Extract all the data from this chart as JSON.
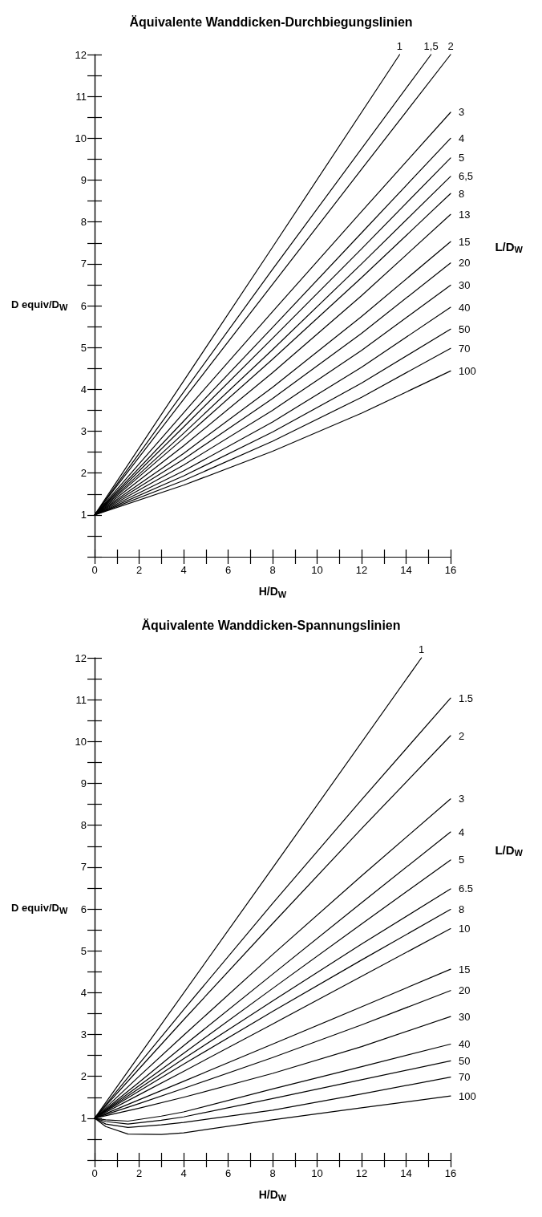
{
  "chart_data": [
    {
      "type": "line",
      "title": "Äquivalente Wanddicken-Durchbiegungslinien",
      "xlabel": "H/D$_{W}$",
      "ylabel": "D equiv/D$_{W}$",
      "legend_title": "L/D$_{W}$",
      "marker": "none",
      "xlim": [
        0,
        16
      ],
      "ylim": [
        0,
        12
      ],
      "xticks": [
        0,
        {
          "value": 1,
          "label": null
        },
        2,
        {
          "value": 3,
          "label": null
        },
        4,
        {
          "value": 5,
          "label": null
        },
        6,
        {
          "value": 7,
          "label": null
        },
        8,
        {
          "value": 9,
          "label": null
        },
        10,
        {
          "value": 11,
          "label": null
        },
        12,
        {
          "value": 13,
          "label": null
        },
        14,
        {
          "value": 15,
          "label": null
        },
        16
      ],
      "yticks": [
        {
          "value": 0,
          "label": null
        },
        {
          "value": 0.5,
          "label": null
        },
        1,
        {
          "value": 1.5,
          "label": null
        },
        2,
        {
          "value": 2.5,
          "label": null
        },
        3,
        {
          "value": 3.5,
          "label": null
        },
        4,
        {
          "value": 4.5,
          "label": null
        },
        5,
        {
          "value": 5.5,
          "label": null
        },
        6,
        {
          "value": 6.5,
          "label": null
        },
        7,
        {
          "value": 7.5,
          "label": null
        },
        8,
        {
          "value": 8.5,
          "label": null
        },
        9,
        {
          "value": 9.5,
          "label": null
        },
        10,
        {
          "value": 10.5,
          "label": null
        },
        11,
        {
          "value": 11.5,
          "label": null
        },
        12
      ],
      "series": [
        {
          "name": "1",
          "color": "#000000",
          "x": [
            0,
            8,
            13.71
          ],
          "values": [
            1,
            7.4,
            12
          ]
        },
        {
          "name": "1,5",
          "color": "#000000",
          "x": [
            0,
            8,
            15.12
          ],
          "values": [
            1,
            6.87,
            12
          ]
        },
        {
          "name": "2",
          "color": "#000000",
          "x": [
            0,
            4,
            8,
            12,
            16
          ],
          "values": [
            1,
            3.76,
            6.51,
            9.26,
            12
          ]
        },
        {
          "name": "3",
          "color": "#000000",
          "x": [
            0,
            4,
            8,
            12,
            16
          ],
          "values": [
            1,
            3.44,
            5.86,
            8.25,
            10.62
          ]
        },
        {
          "name": "4",
          "color": "#000000",
          "x": [
            0,
            4,
            8,
            12,
            16
          ],
          "values": [
            1,
            3.24,
            5.48,
            7.74,
            10.0
          ]
        },
        {
          "name": "5",
          "color": "#000000",
          "x": [
            0,
            4,
            8,
            12,
            16
          ],
          "values": [
            1,
            3.1,
            5.22,
            7.36,
            9.53
          ]
        },
        {
          "name": "6,5",
          "color": "#000000",
          "x": [
            0,
            4,
            8,
            12,
            16
          ],
          "values": [
            1,
            2.95,
            4.95,
            7.0,
            9.09
          ]
        },
        {
          "name": "8",
          "color": "#000000",
          "x": [
            0,
            4,
            8,
            12,
            16
          ],
          "values": [
            1,
            2.83,
            4.72,
            6.67,
            8.68
          ]
        },
        {
          "name": "13",
          "color": "#000000",
          "x": [
            0,
            4,
            8,
            12,
            16
          ],
          "values": [
            1,
            2.65,
            4.4,
            6.24,
            8.18
          ]
        },
        {
          "name": "15",
          "color": "#000000",
          "x": [
            0,
            4,
            8,
            12,
            16
          ],
          "values": [
            1,
            2.47,
            4.05,
            5.74,
            7.53
          ]
        },
        {
          "name": "20",
          "color": "#000000",
          "x": [
            0,
            4,
            8,
            12,
            16
          ],
          "values": [
            1,
            2.33,
            3.78,
            5.34,
            7.02
          ]
        },
        {
          "name": "30",
          "color": "#000000",
          "x": [
            0,
            4,
            8,
            12,
            16
          ],
          "values": [
            1,
            2.19,
            3.5,
            4.93,
            6.49
          ]
        },
        {
          "name": "40",
          "color": "#000000",
          "x": [
            0,
            4,
            8,
            12,
            16
          ],
          "values": [
            1,
            2.05,
            3.22,
            4.53,
            5.96
          ]
        },
        {
          "name": "50",
          "color": "#000000",
          "x": [
            0,
            4,
            8,
            12,
            16
          ],
          "values": [
            1,
            1.93,
            2.98,
            4.15,
            5.44
          ]
        },
        {
          "name": "70",
          "color": "#000000",
          "x": [
            0,
            4,
            8,
            12,
            16
          ],
          "values": [
            1,
            1.82,
            2.76,
            3.81,
            4.98
          ]
        },
        {
          "name": "100",
          "color": "#000000",
          "x": [
            0,
            4,
            8,
            12,
            16
          ],
          "values": [
            1,
            1.71,
            2.52,
            3.43,
            4.44
          ]
        }
      ]
    },
    {
      "type": "line",
      "title": "Äquivalente Wanddicken-Spannungslinien",
      "xlabel": "H/D$_{W}$",
      "ylabel": "D equiv/D$_{W}$",
      "legend_title": "L/D$_{W}$",
      "marker": "none",
      "xlim": [
        0,
        16
      ],
      "ylim": [
        0,
        12
      ],
      "xticks": [
        0,
        {
          "value": 1,
          "label": null
        },
        2,
        {
          "value": 3,
          "label": null
        },
        4,
        {
          "value": 5,
          "label": null
        },
        6,
        {
          "value": 7,
          "label": null
        },
        8,
        {
          "value": 9,
          "label": null
        },
        10,
        {
          "value": 11,
          "label": null
        },
        12,
        {
          "value": 13,
          "label": null
        },
        14,
        {
          "value": 15,
          "label": null
        },
        16
      ],
      "yticks": [
        {
          "value": 0,
          "label": null
        },
        {
          "value": 0.5,
          "label": null
        },
        1,
        {
          "value": 1.5,
          "label": null
        },
        2,
        {
          "value": 2.5,
          "label": null
        },
        3,
        {
          "value": 3.5,
          "label": null
        },
        4,
        {
          "value": 4.5,
          "label": null
        },
        5,
        {
          "value": 5.5,
          "label": null
        },
        6,
        {
          "value": 6.5,
          "label": null
        },
        7,
        {
          "value": 7.5,
          "label": null
        },
        8,
        {
          "value": 8.5,
          "label": null
        },
        9,
        {
          "value": 9.5,
          "label": null
        },
        10,
        {
          "value": 10.5,
          "label": null
        },
        11,
        {
          "value": 11.5,
          "label": null
        },
        12
      ],
      "series": [
        {
          "name": "1",
          "color": "#000000",
          "x": [
            0,
            8,
            14.69
          ],
          "values": [
            1,
            6.98,
            12
          ]
        },
        {
          "name": "1.5",
          "color": "#000000",
          "x": [
            0,
            2,
            4,
            8,
            12,
            16
          ],
          "values": [
            1,
            2.3,
            3.59,
            6.13,
            8.61,
            11.04
          ]
        },
        {
          "name": "2",
          "color": "#000000",
          "x": [
            0,
            2,
            4,
            8,
            12,
            16
          ],
          "values": [
            1,
            2.18,
            3.35,
            5.65,
            7.92,
            10.14
          ]
        },
        {
          "name": "3",
          "color": "#000000",
          "x": [
            0,
            2,
            4,
            8,
            12,
            16
          ],
          "values": [
            1,
            2.0,
            2.98,
            4.91,
            6.79,
            8.63
          ]
        },
        {
          "name": "4",
          "color": "#000000",
          "x": [
            0,
            2,
            4,
            8,
            12,
            16
          ],
          "values": [
            1,
            1.86,
            2.73,
            4.44,
            6.15,
            7.84
          ]
        },
        {
          "name": "5",
          "color": "#000000",
          "x": [
            0,
            2,
            4,
            8,
            12,
            16
          ],
          "values": [
            1,
            1.78,
            2.55,
            4.1,
            5.64,
            7.17
          ]
        },
        {
          "name": "6.5",
          "color": "#000000",
          "x": [
            0,
            2,
            4,
            8,
            12,
            16
          ],
          "values": [
            1,
            1.71,
            2.42,
            3.8,
            5.16,
            6.48
          ]
        },
        {
          "name": "8",
          "color": "#000000",
          "x": [
            0,
            2,
            4,
            8,
            12,
            16
          ],
          "values": [
            1,
            1.65,
            2.29,
            3.55,
            4.78,
            5.99
          ]
        },
        {
          "name": "10",
          "color": "#000000",
          "x": [
            0,
            2,
            4,
            8,
            12,
            16
          ],
          "values": [
            1,
            1.56,
            2.12,
            3.25,
            4.39,
            5.53
          ]
        },
        {
          "name": "15",
          "color": "#000000",
          "x": [
            0,
            2,
            4,
            8,
            12,
            16
          ],
          "values": [
            1,
            1.44,
            1.88,
            2.77,
            3.66,
            4.56
          ]
        },
        {
          "name": "20",
          "color": "#000000",
          "x": [
            0,
            2,
            4,
            8,
            12,
            16
          ],
          "values": [
            1,
            1.35,
            1.71,
            2.45,
            3.23,
            4.05
          ]
        },
        {
          "name": "30",
          "color": "#000000",
          "x": [
            0,
            2,
            4,
            8,
            12,
            16
          ],
          "values": [
            1,
            1.24,
            1.5,
            2.07,
            2.71,
            3.43
          ]
        },
        {
          "name": "40",
          "color": "#000000",
          "x": [
            0,
            0.5,
            1.5,
            3,
            4,
            8,
            12,
            16
          ],
          "values": [
            1,
            0.96,
            0.93,
            1.05,
            1.15,
            1.7,
            2.23,
            2.77
          ]
        },
        {
          "name": "50",
          "color": "#000000",
          "x": [
            0,
            0.5,
            1.5,
            3,
            4,
            8,
            12,
            16
          ],
          "values": [
            1,
            0.92,
            0.86,
            0.95,
            1.03,
            1.47,
            1.92,
            2.37
          ]
        },
        {
          "name": "70",
          "color": "#000000",
          "x": [
            0,
            0.5,
            1.5,
            3,
            4,
            8,
            12,
            16
          ],
          "values": [
            1,
            0.86,
            0.78,
            0.84,
            0.9,
            1.19,
            1.58,
            1.98
          ]
        },
        {
          "name": "100",
          "color": "#000000",
          "x": [
            0,
            0.5,
            1.5,
            3,
            4,
            8,
            12,
            16
          ],
          "values": [
            1,
            0.8,
            0.62,
            0.61,
            0.65,
            0.96,
            1.25,
            1.53
          ]
        }
      ]
    }
  ]
}
